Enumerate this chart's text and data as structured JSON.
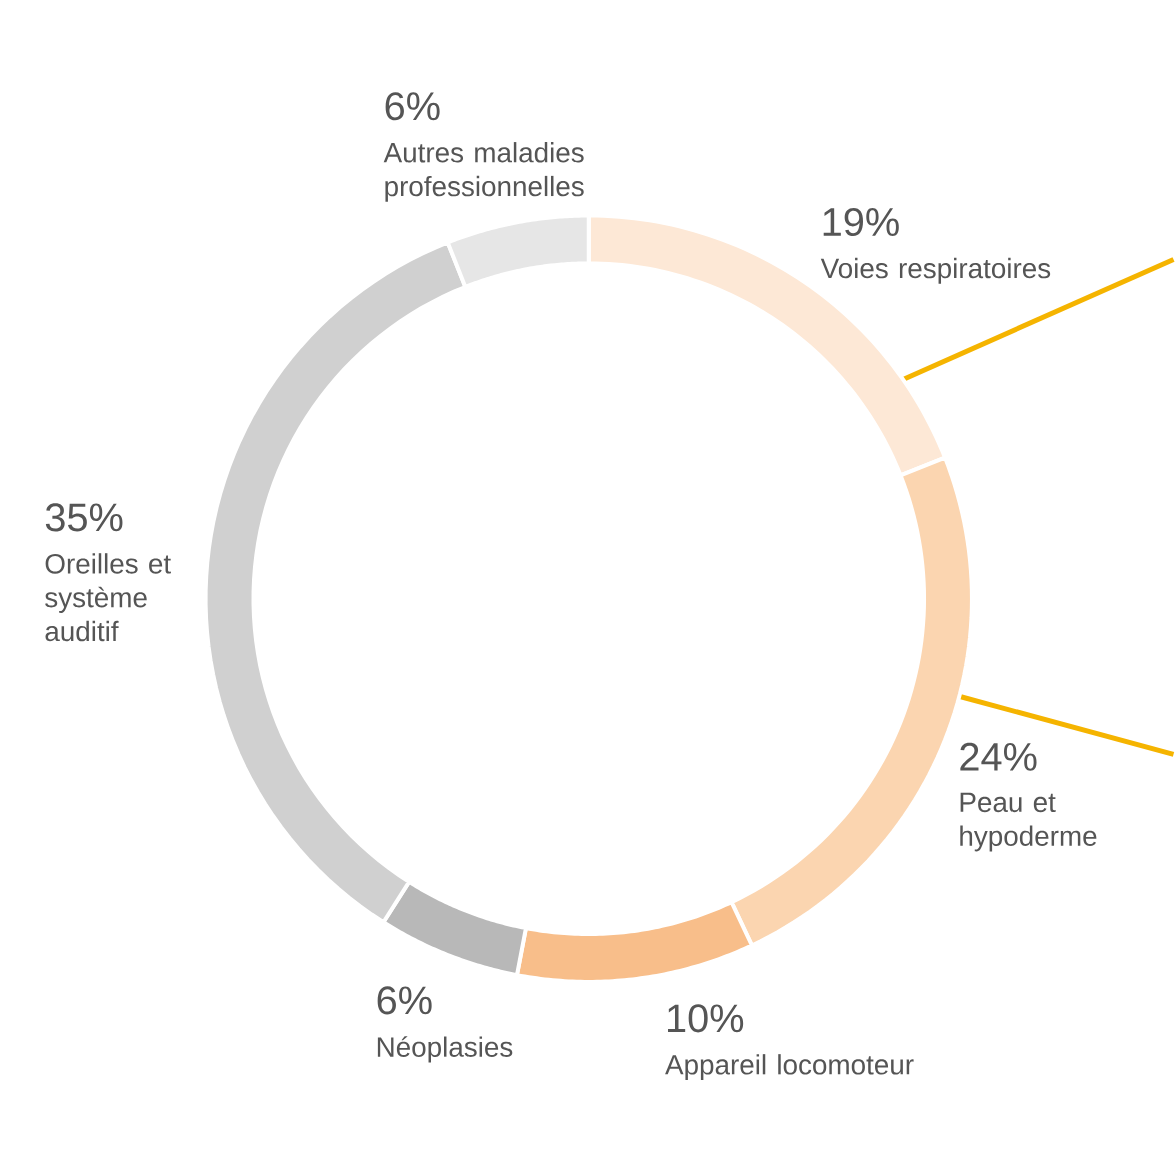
{
  "chart_data": {
    "type": "donut",
    "categories": [
      "Voies respiratoires",
      "Peau et hypoderme",
      "Appareil locomoteur",
      "Néoplasies",
      "Oreilles et système auditif",
      "Autres maladies professionnelles"
    ],
    "values": [
      19,
      24,
      10,
      6,
      35,
      6
    ],
    "value_labels": [
      "19%",
      "24%",
      "10%",
      "6%",
      "35%",
      "6%"
    ],
    "colors": [
      "#fde8d6",
      "#fbd5b0",
      "#f8be8a",
      "#b8b8b8",
      "#d0d0d0",
      "#e6e6e6"
    ]
  }
}
